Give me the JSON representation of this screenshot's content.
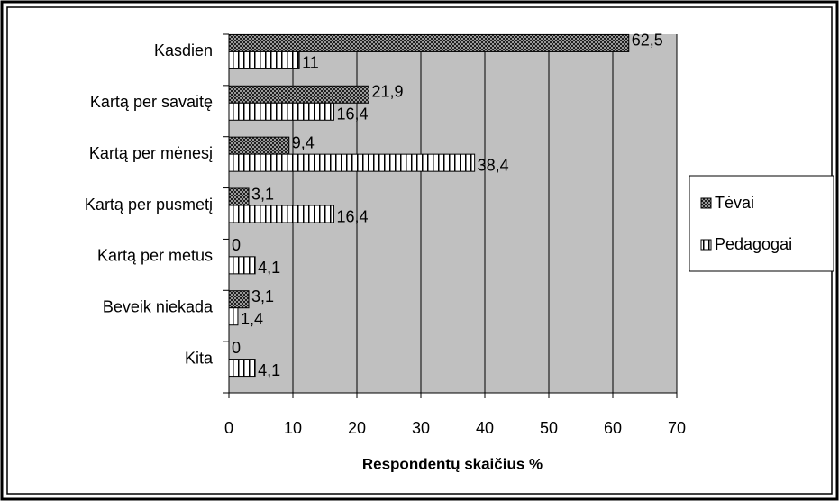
{
  "chart_data": {
    "type": "bar",
    "orientation": "horizontal",
    "categories": [
      "Kasdien",
      "Kartą per savaitę",
      "Kartą per mėnesį",
      "Kartą per pusmetį",
      "Kartą per metus",
      "Beveik niekada",
      "Kita"
    ],
    "series": [
      {
        "name": "Tėvai",
        "values": [
          62.5,
          21.9,
          9.4,
          3.1,
          0,
          3.1,
          0
        ],
        "value_labels": [
          "62,5",
          "21,9",
          "9,4",
          "3,1",
          "0",
          "3,1",
          "0"
        ]
      },
      {
        "name": "Pedagogai",
        "values": [
          11,
          16.4,
          38.4,
          16.4,
          4.1,
          1.4,
          4.1
        ],
        "value_labels": [
          "11",
          "16,4",
          "38,4",
          "16,4",
          "4,1",
          "1,4",
          "4,1"
        ]
      }
    ],
    "xlabel": "Respondentų skaičius %",
    "xlim": [
      0,
      70
    ],
    "xticks": [
      0,
      10,
      20,
      30,
      40,
      50,
      60,
      70
    ],
    "grid": true,
    "legend": "right"
  }
}
